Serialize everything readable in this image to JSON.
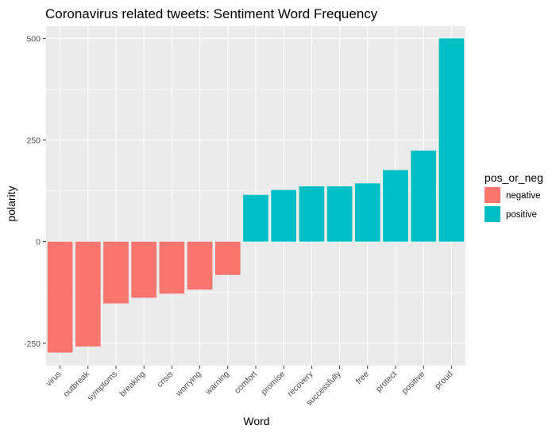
{
  "chart_data": {
    "type": "bar",
    "title": "Coronavirus related tweets: Sentiment Word Frequency",
    "xlabel": "Word",
    "ylabel": "polarity",
    "categories": [
      "virus",
      "outbreak",
      "symptoms",
      "breaking",
      "crisis",
      "worrying",
      "warning",
      "comfort",
      "promise",
      "recovery",
      "successfully",
      "free",
      "protect",
      "positive",
      "proud"
    ],
    "values": [
      -273,
      -258,
      -152,
      -138,
      -128,
      -118,
      -82,
      115,
      127,
      136,
      136,
      143,
      176,
      224,
      500
    ],
    "group": [
      "negative",
      "negative",
      "negative",
      "negative",
      "negative",
      "negative",
      "negative",
      "positive",
      "positive",
      "positive",
      "positive",
      "positive",
      "positive",
      "positive",
      "positive"
    ],
    "ylim": [
      -305,
      530
    ],
    "yticks": [
      -250,
      0,
      250,
      500
    ],
    "ytick_labels": [
      "-250",
      "0",
      "250",
      "500"
    ],
    "grid": true,
    "legend": {
      "title": "pos_or_neg",
      "position": "right",
      "entries": [
        {
          "label": "negative",
          "color": "#F8766D"
        },
        {
          "label": "positive",
          "color": "#00BFC4"
        }
      ]
    },
    "colors": {
      "negative": "#F8766D",
      "positive": "#00BFC4",
      "panel": "#EBEBEB",
      "grid": "#FFFFFF"
    }
  }
}
